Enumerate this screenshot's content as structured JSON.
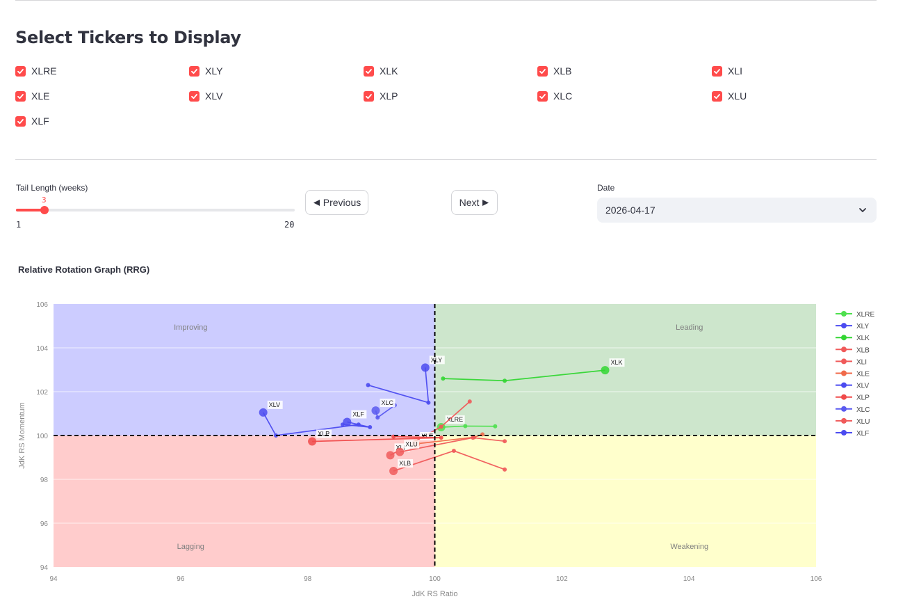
{
  "header": {
    "title": "Select Tickers to Display"
  },
  "tickers": [
    {
      "label": "XLRE",
      "checked": true
    },
    {
      "label": "XLY",
      "checked": true
    },
    {
      "label": "XLK",
      "checked": true
    },
    {
      "label": "XLB",
      "checked": true
    },
    {
      "label": "XLI",
      "checked": true
    },
    {
      "label": "XLE",
      "checked": true
    },
    {
      "label": "XLV",
      "checked": true
    },
    {
      "label": "XLP",
      "checked": true
    },
    {
      "label": "XLC",
      "checked": true
    },
    {
      "label": "XLU",
      "checked": true
    },
    {
      "label": "XLF",
      "checked": true
    }
  ],
  "controls": {
    "tail_label": "Tail Length (weeks)",
    "tail_value": "3",
    "tail_min": "1",
    "tail_max": "20",
    "prev_label": "Previous",
    "next_label": "Next",
    "date_label": "Date",
    "date_value": "2026-04-17"
  },
  "colors": {
    "accent": "#ff4b4b",
    "improving": "#ccccff",
    "leading": "#cde6cc",
    "lagging": "#ffcccc",
    "weakening": "#ffffcc"
  },
  "chart_data": {
    "type": "scatter",
    "title": "Relative Rotation Graph (RRG)",
    "xlabel": "JdK RS Ratio",
    "ylabel": "JdK RS Momentum",
    "xlim": [
      94,
      106
    ],
    "ylim": [
      94,
      106
    ],
    "xticks": [
      "94",
      "96",
      "98",
      "100",
      "102",
      "104",
      "106"
    ],
    "yticks": [
      "94",
      "96",
      "98",
      "100",
      "102",
      "104",
      "106"
    ],
    "quadrants": [
      {
        "name": "Improving",
        "color": "#ccccff"
      },
      {
        "name": "Leading",
        "color": "#cde6cc"
      },
      {
        "name": "Lagging",
        "color": "#ffcccc"
      },
      {
        "name": "Weakening",
        "color": "#ffffcc"
      }
    ],
    "legend_position": "right",
    "series": [
      {
        "name": "XLRE",
        "color": "#4ee04e",
        "points": [
          [
            100.95,
            100.42
          ],
          [
            100.48,
            100.43
          ],
          [
            100.1,
            100.38
          ]
        ]
      },
      {
        "name": "XLY",
        "color": "#4b4bf0",
        "points": [
          [
            98.95,
            102.3
          ],
          [
            99.9,
            101.5
          ],
          [
            99.85,
            103.1
          ]
        ]
      },
      {
        "name": "XLK",
        "color": "#33d633",
        "points": [
          [
            100.13,
            102.6
          ],
          [
            101.1,
            102.5
          ],
          [
            102.68,
            102.98
          ]
        ]
      },
      {
        "name": "XLB",
        "color": "#f05a5a",
        "points": [
          [
            101.1,
            98.45
          ],
          [
            100.3,
            99.3
          ],
          [
            99.35,
            98.38
          ]
        ]
      },
      {
        "name": "XLI",
        "color": "#f05a5a",
        "points": [
          [
            100.55,
            101.55
          ],
          [
            100.1,
            100.4
          ],
          [
            99.3,
            99.1
          ]
        ]
      },
      {
        "name": "XLE",
        "color": "#f06a4a",
        "points": [
          [
            100.75,
            100.05
          ],
          [
            100.62,
            99.92
          ],
          [
            99.7,
            99.62
          ]
        ]
      },
      {
        "name": "XLV",
        "color": "#4b4bf0",
        "points": [
          [
            98.8,
            100.5
          ],
          [
            97.5,
            100.0
          ],
          [
            97.3,
            101.05
          ]
        ]
      },
      {
        "name": "XLP",
        "color": "#f04a4a",
        "points": [
          [
            99.35,
            99.95
          ],
          [
            100.1,
            99.9
          ],
          [
            98.07,
            99.73
          ]
        ]
      },
      {
        "name": "XLC",
        "color": "#5a5af0",
        "points": [
          [
            99.37,
            101.38
          ],
          [
            99.1,
            100.82
          ],
          [
            99.07,
            101.14
          ]
        ]
      },
      {
        "name": "XLU",
        "color": "#f05a5a",
        "points": [
          [
            101.1,
            99.74
          ],
          [
            100.6,
            99.9
          ],
          [
            99.45,
            99.25
          ]
        ]
      },
      {
        "name": "XLF",
        "color": "#4b4bf0",
        "points": [
          [
            98.55,
            100.5
          ],
          [
            98.98,
            100.38
          ],
          [
            98.62,
            100.62
          ]
        ]
      }
    ]
  }
}
